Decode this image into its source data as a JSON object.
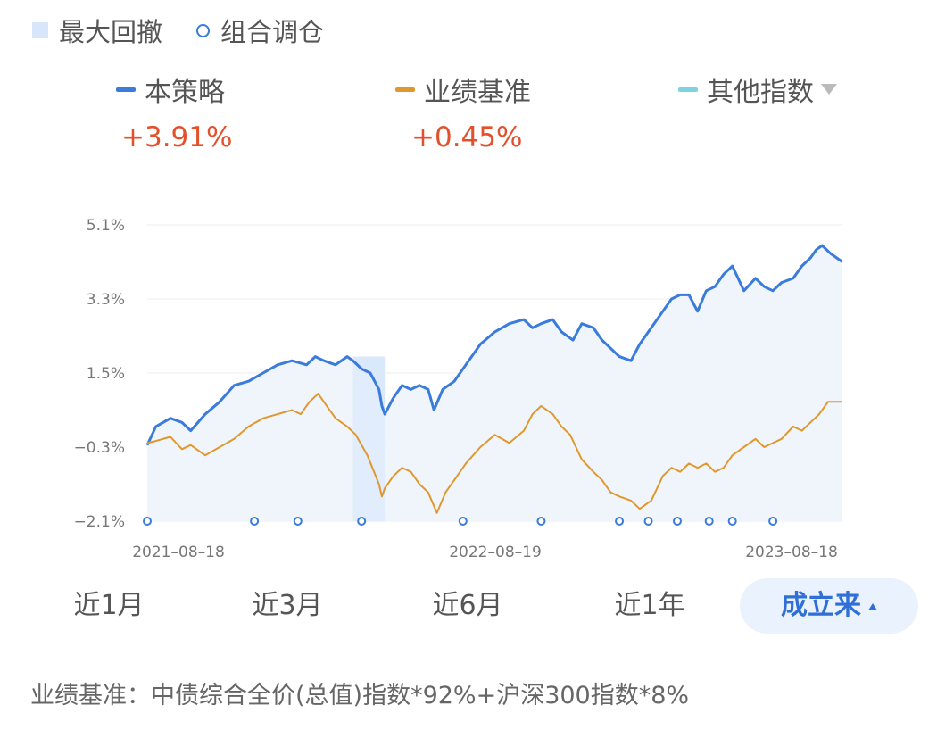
{
  "legend": {
    "drawdown": "最大回撤",
    "rebalance": "组合调仓"
  },
  "series_summary": [
    {
      "name": "本策略",
      "return": "+3.91%",
      "color": "#3a7bdc"
    },
    {
      "name": "业绩基准",
      "return": "+0.45%",
      "color": "#e0982e"
    },
    {
      "name": "其他指数",
      "color": "#7fd3e0"
    }
  ],
  "periods": [
    {
      "label": "近1月",
      "active": false
    },
    {
      "label": "近3月",
      "active": false
    },
    {
      "label": "近6月",
      "active": false
    },
    {
      "label": "近1年",
      "active": false
    },
    {
      "label": "成立来",
      "active": true
    }
  ],
  "footnote": "业绩基准：中债综合全价(总值)指数*92%+沪深300指数*8%",
  "chart_data": {
    "type": "line",
    "x_ticks": [
      "2021-08-18",
      "2022-08-19",
      "2023-08-18"
    ],
    "y_ticks": [
      "5.1%",
      "3.3%",
      "1.5%",
      "-0.3%",
      "-2.1%"
    ],
    "ylim": [
      -2.1,
      5.1
    ],
    "x_range": [
      0,
      24
    ],
    "grid": true,
    "max_drawdown_range": [
      7.1,
      8.2
    ],
    "rebalance_points": [
      0,
      3.7,
      5.2,
      7.4,
      10.9,
      13.6,
      16.3,
      17.3,
      18.3,
      19.4,
      20.2,
      21.6
    ],
    "series": [
      {
        "name": "本策略",
        "color": "#3a7bdc",
        "fill": true,
        "x": [
          0,
          0.3,
          0.8,
          1.2,
          1.5,
          2.0,
          2.5,
          3.0,
          3.5,
          4.0,
          4.5,
          5.0,
          5.5,
          5.8,
          6.1,
          6.5,
          6.9,
          7.1,
          7.4,
          7.7,
          8.0,
          8.1,
          8.2,
          8.5,
          8.8,
          9.1,
          9.4,
          9.7,
          9.9,
          10.2,
          10.6,
          11.0,
          11.5,
          12.0,
          12.5,
          13.0,
          13.3,
          13.6,
          14.0,
          14.3,
          14.7,
          15.0,
          15.4,
          15.7,
          16.0,
          16.3,
          16.7,
          17.0,
          17.4,
          17.8,
          18.1,
          18.4,
          18.7,
          19.0,
          19.3,
          19.6,
          19.9,
          20.2,
          20.6,
          21.0,
          21.3,
          21.6,
          21.9,
          22.3,
          22.6,
          22.9,
          23.1,
          23.3,
          23.6,
          24.0
        ],
        "y": [
          -0.25,
          0.2,
          0.4,
          0.3,
          0.1,
          0.5,
          0.8,
          1.2,
          1.3,
          1.5,
          1.7,
          1.8,
          1.7,
          1.9,
          1.8,
          1.7,
          1.9,
          1.8,
          1.6,
          1.5,
          1.1,
          0.7,
          0.5,
          0.9,
          1.2,
          1.1,
          1.2,
          1.1,
          0.6,
          1.1,
          1.3,
          1.7,
          2.2,
          2.5,
          2.7,
          2.8,
          2.6,
          2.7,
          2.8,
          2.5,
          2.3,
          2.7,
          2.6,
          2.3,
          2.1,
          1.9,
          1.8,
          2.2,
          2.6,
          3.0,
          3.3,
          3.4,
          3.4,
          3.0,
          3.5,
          3.6,
          3.9,
          4.1,
          3.5,
          3.8,
          3.6,
          3.5,
          3.7,
          3.8,
          4.1,
          4.3,
          4.5,
          4.6,
          4.4,
          4.2
        ]
      },
      {
        "name": "业绩基准",
        "color": "#e0982e",
        "fill": false,
        "x": [
          0,
          0.3,
          0.8,
          1.2,
          1.5,
          2.0,
          2.5,
          3.0,
          3.5,
          4.0,
          4.5,
          5.0,
          5.3,
          5.6,
          5.9,
          6.2,
          6.5,
          6.9,
          7.2,
          7.6,
          8.0,
          8.1,
          8.2,
          8.5,
          8.8,
          9.1,
          9.4,
          9.7,
          10.0,
          10.3,
          10.6,
          11.0,
          11.5,
          12.0,
          12.5,
          13.0,
          13.3,
          13.6,
          14.0,
          14.3,
          14.6,
          15.0,
          15.4,
          15.7,
          16.0,
          16.3,
          16.7,
          17.0,
          17.4,
          17.8,
          18.1,
          18.4,
          18.7,
          19.0,
          19.3,
          19.6,
          19.9,
          20.2,
          20.6,
          21.0,
          21.3,
          21.6,
          21.9,
          22.3,
          22.6,
          22.9,
          23.2,
          23.5,
          24.0
        ],
        "y": [
          -0.2,
          -0.15,
          -0.05,
          -0.35,
          -0.25,
          -0.5,
          -0.3,
          -0.1,
          0.2,
          0.4,
          0.5,
          0.6,
          0.5,
          0.8,
          1.0,
          0.7,
          0.4,
          0.2,
          0.0,
          -0.5,
          -1.2,
          -1.5,
          -1.3,
          -1.0,
          -0.8,
          -0.9,
          -1.2,
          -1.4,
          -1.9,
          -1.4,
          -1.1,
          -0.7,
          -0.3,
          0.0,
          -0.2,
          0.1,
          0.5,
          0.7,
          0.5,
          0.2,
          0.0,
          -0.6,
          -0.9,
          -1.1,
          -1.4,
          -1.5,
          -1.6,
          -1.8,
          -1.6,
          -1.0,
          -0.8,
          -0.9,
          -0.7,
          -0.8,
          -0.7,
          -0.9,
          -0.8,
          -0.5,
          -0.3,
          -0.1,
          -0.3,
          -0.2,
          -0.1,
          0.2,
          0.1,
          0.3,
          0.5,
          0.8,
          0.8
        ]
      }
    ]
  }
}
